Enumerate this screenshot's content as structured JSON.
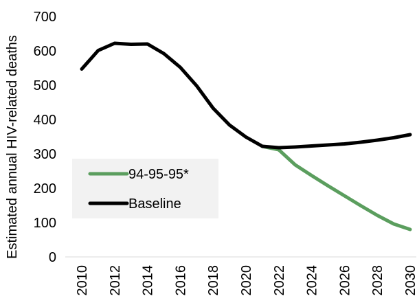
{
  "chart_data": {
    "type": "line",
    "title": "",
    "xlabel": "",
    "ylabel": "Estimated annual HIV-related deaths",
    "ylim": [
      0,
      700
    ],
    "yticks": [
      0,
      100,
      200,
      300,
      400,
      500,
      600,
      700
    ],
    "xticks": [
      2010,
      2012,
      2014,
      2016,
      2018,
      2020,
      2022,
      2024,
      2026,
      2028,
      2030
    ],
    "grid": false,
    "legend_position": "left",
    "series": [
      {
        "name": "94-95-95*",
        "color": "#5b9e5e",
        "x": [
          2021,
          2022,
          2023,
          2024,
          2025,
          2026,
          2027,
          2028,
          2029,
          2030
        ],
        "y": [
          322,
          312,
          268,
          237,
          207,
          178,
          149,
          121,
          96,
          80
        ]
      },
      {
        "name": "Baseline",
        "color": "#000000",
        "x": [
          2010,
          2011,
          2012,
          2013,
          2014,
          2015,
          2016,
          2017,
          2018,
          2019,
          2020,
          2021,
          2022,
          2023,
          2024,
          2025,
          2026,
          2027,
          2028,
          2029,
          2030
        ],
        "y": [
          547,
          601,
          622,
          619,
          620,
          592,
          552,
          498,
          433,
          384,
          349,
          322,
          318,
          320,
          323,
          326,
          329,
          334,
          340,
          347,
          356
        ]
      }
    ]
  }
}
